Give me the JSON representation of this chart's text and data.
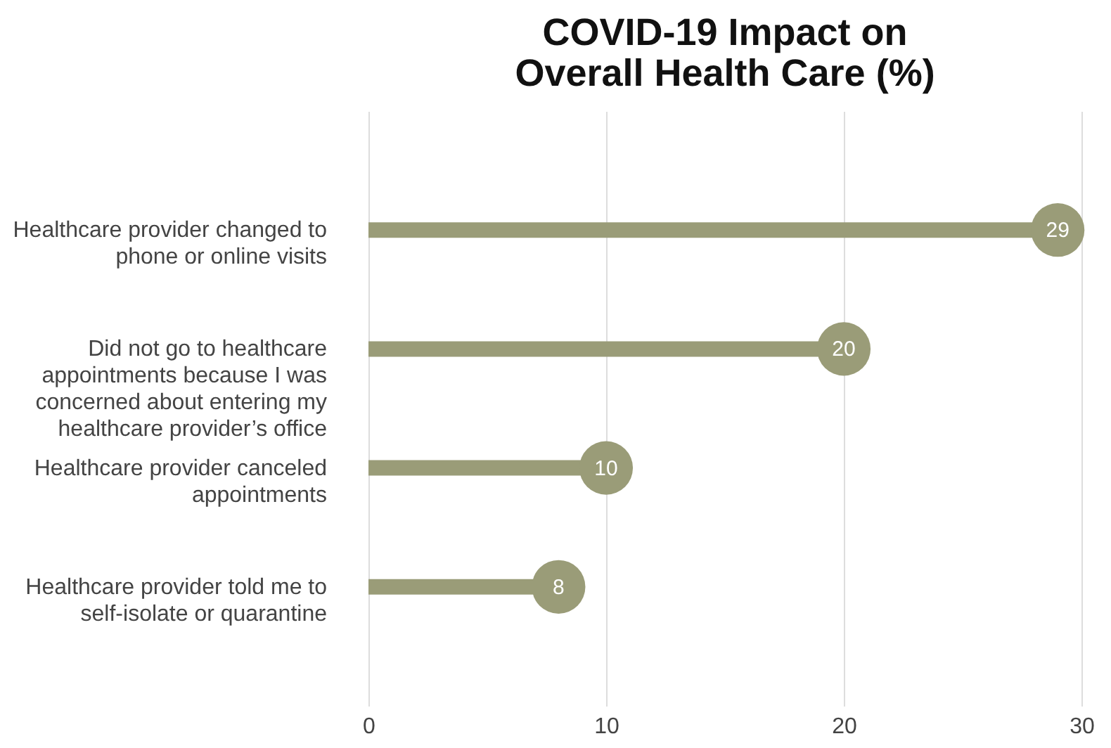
{
  "chart_data": {
    "type": "lollipop",
    "title": "COVID-19 Impact on Overall Health Care (%)",
    "orientation": "horizontal",
    "categories": [
      "Healthcare provider changed to phone or online visits",
      "Did not go to healthcare appointments because I was concerned about entering my healthcare provider’s office",
      "Healthcare provider canceled appointments",
      "Healthcare provider told me to self-isolate or quarantine"
    ],
    "values": [
      29,
      20,
      10,
      8
    ],
    "color": "#9a9c78",
    "xlim": [
      0,
      30
    ],
    "xticks": [
      0,
      10,
      20,
      30
    ],
    "grid": "x",
    "data_labels": true
  }
}
